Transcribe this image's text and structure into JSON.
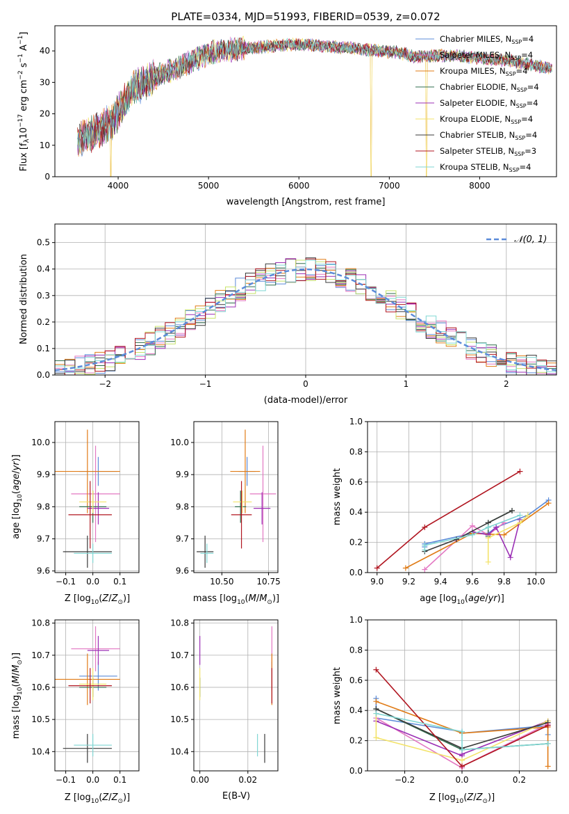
{
  "colors": {
    "series": [
      "#5b8bd9",
      "#e377c2",
      "#e07b16",
      "#2f6d4c",
      "#9b2fb5",
      "#f3e36a",
      "#3a3a3a",
      "#b0141f",
      "#7fd6d3"
    ],
    "dist": [
      "#5b8bd9",
      "#e377c2",
      "#e07b16",
      "#2f6d4c",
      "#9b2fb5",
      "#c7e36a",
      "#3a3a3a",
      "#b0141f",
      "#7fd6d3"
    ],
    "grid": "#b0b0b0",
    "normal_curve": "#5b8bd9"
  },
  "chart_data": [
    {
      "id": "spectrum",
      "type": "line",
      "title": "PLATE=0334, MJD=51993, FIBERID=0539, z=0.072",
      "xlabel": "wavelength [Angstrom, rest frame]",
      "ylabel": "Flux [f",
      "xlim": [
        3300,
        8850
      ],
      "ylim": [
        0,
        48
      ],
      "xticks": [
        4000,
        5000,
        6000,
        7000,
        8000
      ],
      "yticks": [
        0,
        10,
        20,
        30,
        40
      ],
      "grid": false,
      "legend_position": "top-right",
      "series": [
        {
          "name": "Chabrier MILES, N",
          "nssp": "4"
        },
        {
          "name": "Salpeter MILES, N",
          "nssp": "4"
        },
        {
          "name": "Kroupa MILES, N",
          "nssp": "4"
        },
        {
          "name": "Chabrier ELODIE, N",
          "nssp": "4"
        },
        {
          "name": "Salpeter ELODIE, N",
          "nssp": "4"
        },
        {
          "name": "Kroupa ELODIE, N",
          "nssp": "4"
        },
        {
          "name": "Chabrier STELIB, N",
          "nssp": "4"
        },
        {
          "name": "Salpeter STELIB, N",
          "nssp": "3"
        },
        {
          "name": "Kroupa STELIB, N",
          "nssp": "4"
        }
      ],
      "continuum": {
        "x": [
          3550,
          3650,
          3750,
          3850,
          3950,
          4050,
          4150,
          4300,
          4500,
          4700,
          4900,
          5100,
          5300,
          5500,
          5700,
          5900,
          6100,
          6300,
          6500,
          6700,
          6900,
          7100,
          7300,
          7500,
          7700,
          7900,
          8100,
          8300,
          8500,
          8700,
          8800
        ],
        "y": [
          12,
          13,
          14,
          16,
          18,
          23,
          28,
          30,
          33,
          35,
          38,
          40,
          40.5,
          41,
          41.5,
          42,
          42,
          41.5,
          41,
          40.5,
          40,
          39.5,
          38,
          38.5,
          38.5,
          38,
          37.5,
          37,
          36,
          35,
          34.5
        ]
      },
      "dips": [
        {
          "x": 3920,
          "y": 0
        },
        {
          "x": 6800,
          "y": 0
        },
        {
          "x": 7410,
          "y": 0
        }
      ]
    },
    {
      "id": "residuals",
      "type": "line",
      "xlabel": "(data-model)/error",
      "ylabel": "Normed distribution",
      "xlim": [
        -2.5,
        2.5
      ],
      "ylim": [
        0,
        0.57
      ],
      "xticks": [
        -2,
        -1,
        0,
        1,
        2
      ],
      "yticks": [
        0.0,
        0.1,
        0.2,
        0.3,
        0.4,
        0.5
      ],
      "grid": true,
      "legend_position": "top-right",
      "legend": "𝒩(0, 1)",
      "bin_width": 0.1
    },
    {
      "id": "age_vs_Z",
      "type": "scatter",
      "xlabel": "Z [log",
      "ylabel": "age  [log",
      "xlim": [
        -0.14,
        0.17
      ],
      "ylim": [
        9.595,
        10.065
      ],
      "xticks": [
        -0.1,
        0.0,
        0.1
      ],
      "yticks": [
        9.6,
        9.7,
        9.8,
        9.9,
        10.0
      ],
      "grid": true
    },
    {
      "id": "age_vs_mass",
      "type": "scatter",
      "xlabel": "mass [log",
      "xlim": [
        10.35,
        10.8
      ],
      "ylim": [
        9.595,
        10.065
      ],
      "xticks": [
        10.5,
        10.75
      ],
      "yticks": [
        9.6,
        9.7,
        9.8,
        9.9,
        10.0
      ],
      "grid": true
    },
    {
      "id": "weight_vs_age",
      "type": "line",
      "xlabel": "age  [log",
      "ylabel": "mass weight",
      "xlim": [
        8.94,
        10.13
      ],
      "ylim": [
        0,
        1.0
      ],
      "xticks": [
        9.0,
        9.2,
        9.4,
        9.6,
        9.8,
        10.0
      ],
      "yticks": [
        0.0,
        0.2,
        0.4,
        0.6,
        0.8,
        1.0
      ],
      "grid": true
    },
    {
      "id": "mass_vs_Z",
      "type": "scatter",
      "xlabel": "Z [log",
      "ylabel": "mass [log",
      "xlim": [
        -0.14,
        0.17
      ],
      "ylim": [
        10.34,
        10.81
      ],
      "xticks": [
        -0.1,
        0.0,
        0.1
      ],
      "yticks": [
        10.4,
        10.5,
        10.6,
        10.7,
        10.8
      ],
      "grid": true
    },
    {
      "id": "mass_vs_ebv",
      "type": "scatter",
      "xlabel": "E(B-V)",
      "xlim": [
        -0.0025,
        0.0325
      ],
      "ylim": [
        10.34,
        10.81
      ],
      "xticks": [
        0.0,
        0.02
      ],
      "yticks": [
        10.4,
        10.5,
        10.6,
        10.7,
        10.8
      ],
      "grid": true
    },
    {
      "id": "weight_vs_Z",
      "type": "line",
      "xlabel": "Z [log",
      "ylabel": "mass weight",
      "xlim": [
        -0.33,
        0.33
      ],
      "ylim": [
        0,
        1.0
      ],
      "xticks": [
        -0.2,
        0.0,
        0.2
      ],
      "yticks": [
        0.0,
        0.2,
        0.4,
        0.6,
        0.8,
        1.0
      ],
      "grid": true
    }
  ],
  "fits": [
    {
      "Z": 0.02,
      "Zerr": 0.07,
      "age": 9.91,
      "ageerr": 0.045,
      "mass": 10.635,
      "masserr": 0.045,
      "ebv": 0.03
    },
    {
      "Z": 0.01,
      "Zerr": 0.09,
      "age": 9.84,
      "ageerr": 0.15,
      "mass": 10.72,
      "masserr": 0.07,
      "ebv": 0.03
    },
    {
      "Z": -0.02,
      "Zerr": 0.12,
      "age": 9.91,
      "ageerr": 0.13,
      "mass": 10.625,
      "masserr": 0.08,
      "ebv": 0.03
    },
    {
      "Z": 0.0,
      "Zerr": 0.05,
      "age": 9.8,
      "ageerr": 0.05,
      "mass": 10.6,
      "masserr": 0.03,
      "ebv": 0.0
    },
    {
      "Z": 0.02,
      "Zerr": 0.04,
      "age": 9.795,
      "ageerr": 0.05,
      "mass": 10.715,
      "masserr": 0.045,
      "ebv": 0.0
    },
    {
      "Z": 0.0,
      "Zerr": 0.05,
      "age": 9.815,
      "ageerr": 0.035,
      "mass": 10.61,
      "masserr": 0.05,
      "ebv": 0.0
    },
    {
      "Z": -0.02,
      "Zerr": 0.09,
      "age": 9.66,
      "ageerr": 0.05,
      "mass": 10.41,
      "masserr": 0.045,
      "ebv": 0.027
    },
    {
      "Z": -0.01,
      "Zerr": 0.08,
      "age": 9.775,
      "ageerr": 0.105,
      "mass": 10.605,
      "masserr": 0.055,
      "ebv": 0.03
    },
    {
      "Z": 0.0,
      "Zerr": 0.07,
      "age": 9.655,
      "ageerr": 0.03,
      "mass": 10.42,
      "masserr": 0.035,
      "ebv": 0.024
    }
  ],
  "weights": [
    {
      "age": [
        9.3,
        9.3,
        9.6,
        9.7,
        9.75,
        9.95,
        10.08
      ],
      "w": [
        0.17,
        0.19,
        0.26,
        0.26,
        0.3,
        0.38,
        0.48
      ],
      "Z": [
        -0.3,
        -0.3,
        0.0,
        0.0,
        0.3,
        0.3
      ],
      "wz": [
        0.48,
        0.35,
        0.26,
        0.25,
        0.3,
        0.24
      ]
    },
    {
      "age": [
        9.3,
        9.6,
        9.7,
        9.8
      ],
      "w": [
        0.02,
        0.31,
        0.25,
        0.33
      ],
      "Z": [
        -0.3,
        0.0,
        0.0,
        0.3
      ],
      "wz": [
        0.35,
        0.02,
        0.03,
        0.31
      ]
    },
    {
      "age": [
        9.18,
        9.6,
        9.8,
        10.08
      ],
      "w": [
        0.03,
        0.26,
        0.25,
        0.46
      ],
      "Z": [
        -0.3,
        0.0,
        0.3,
        0.3
      ],
      "wz": [
        0.46,
        0.25,
        0.29,
        0.03
      ]
    },
    {
      "age": [
        9.7,
        9.7,
        9.85
      ],
      "w": [
        0.24,
        0.33,
        0.41
      ],
      "Z": [
        -0.3,
        0.0,
        0.3
      ],
      "wz": [
        0.41,
        0.14,
        0.18
      ]
    },
    {
      "age": [
        9.6,
        9.7,
        9.75,
        9.84,
        9.9
      ],
      "w": [
        0.27,
        0.25,
        0.3,
        0.1,
        0.35
      ],
      "Z": [
        -0.3,
        0.0,
        0.0,
        0.3
      ],
      "wz": [
        0.33,
        0.1,
        0.11,
        0.33
      ]
    },
    {
      "age": [
        9.7,
        9.7,
        9.9,
        9.95
      ],
      "w": [
        0.07,
        0.23,
        0.33,
        0.38
      ],
      "Z": [
        -0.3,
        -0.3,
        0.0,
        0.3
      ],
      "wz": [
        0.38,
        0.22,
        0.07,
        0.33
      ]
    },
    {
      "age": [
        9.3,
        9.5,
        9.7,
        9.85
      ],
      "w": [
        0.14,
        0.22,
        0.33,
        0.41
      ],
      "Z": [
        -0.3,
        0.0,
        0.3
      ],
      "wz": [
        0.41,
        0.15,
        0.32
      ]
    },
    {
      "age": [
        9.0,
        9.3,
        9.9
      ],
      "w": [
        0.03,
        0.3,
        0.67
      ],
      "Z": [
        -0.3,
        0.0,
        0.3
      ],
      "wz": [
        0.67,
        0.03,
        0.3
      ]
    },
    {
      "age": [
        9.3,
        9.3,
        9.6,
        9.7,
        9.9
      ],
      "w": [
        0.15,
        0.18,
        0.25,
        0.3,
        0.38
      ],
      "Z": [
        -0.3,
        0.0,
        0.0,
        0.3
      ],
      "wz": [
        0.38,
        0.26,
        0.14,
        0.18
      ]
    }
  ]
}
